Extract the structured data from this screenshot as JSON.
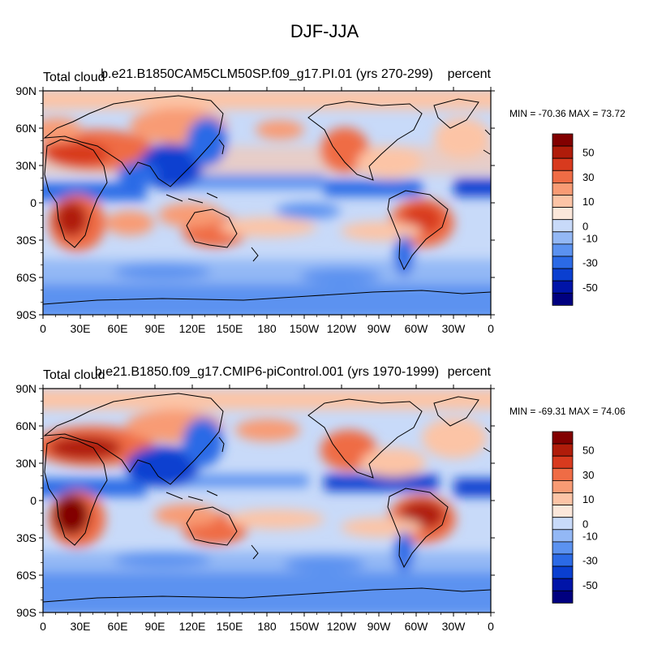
{
  "figure_title": "DJF-JJA",
  "colors": {
    "levels": [
      "#00007f",
      "#0014a8",
      "#0a3fd0",
      "#2b6ae6",
      "#5b92f0",
      "#93b8f5",
      "#c8daf9",
      "#fbe7da",
      "#fcc4a6",
      "#f89b74",
      "#ef6c45",
      "#d83a1e",
      "#b01c0a",
      "#820000"
    ],
    "land_outline": "#000000",
    "frame": "#000000"
  },
  "colorbar_labels": [
    "50",
    "30",
    "10",
    "0",
    "-10",
    "-30",
    "-50"
  ],
  "lat_labels": [
    "90N",
    "60N",
    "30N",
    "0",
    "30S",
    "60S",
    "90S"
  ],
  "lon_labels": [
    "0",
    "30E",
    "60E",
    "90E",
    "120E",
    "150E",
    "180",
    "150W",
    "120W",
    "90W",
    "60W",
    "30W",
    "0"
  ],
  "panels": [
    {
      "variable": "Total cloud",
      "case": "b.e21.B1850CAM5CLM50SP.f09_g17.PI.01 (yrs 270-299)",
      "units": "percent",
      "stats": "MIN = -70.36 MAX =  73.72"
    },
    {
      "variable": "Total cloud",
      "case": "b.e21.B1850.f09_g17.CMIP6-piControl.001 (yrs 1970-1999)",
      "units": "percent",
      "stats": "MIN = -69.31 MAX =  74.06"
    }
  ]
}
